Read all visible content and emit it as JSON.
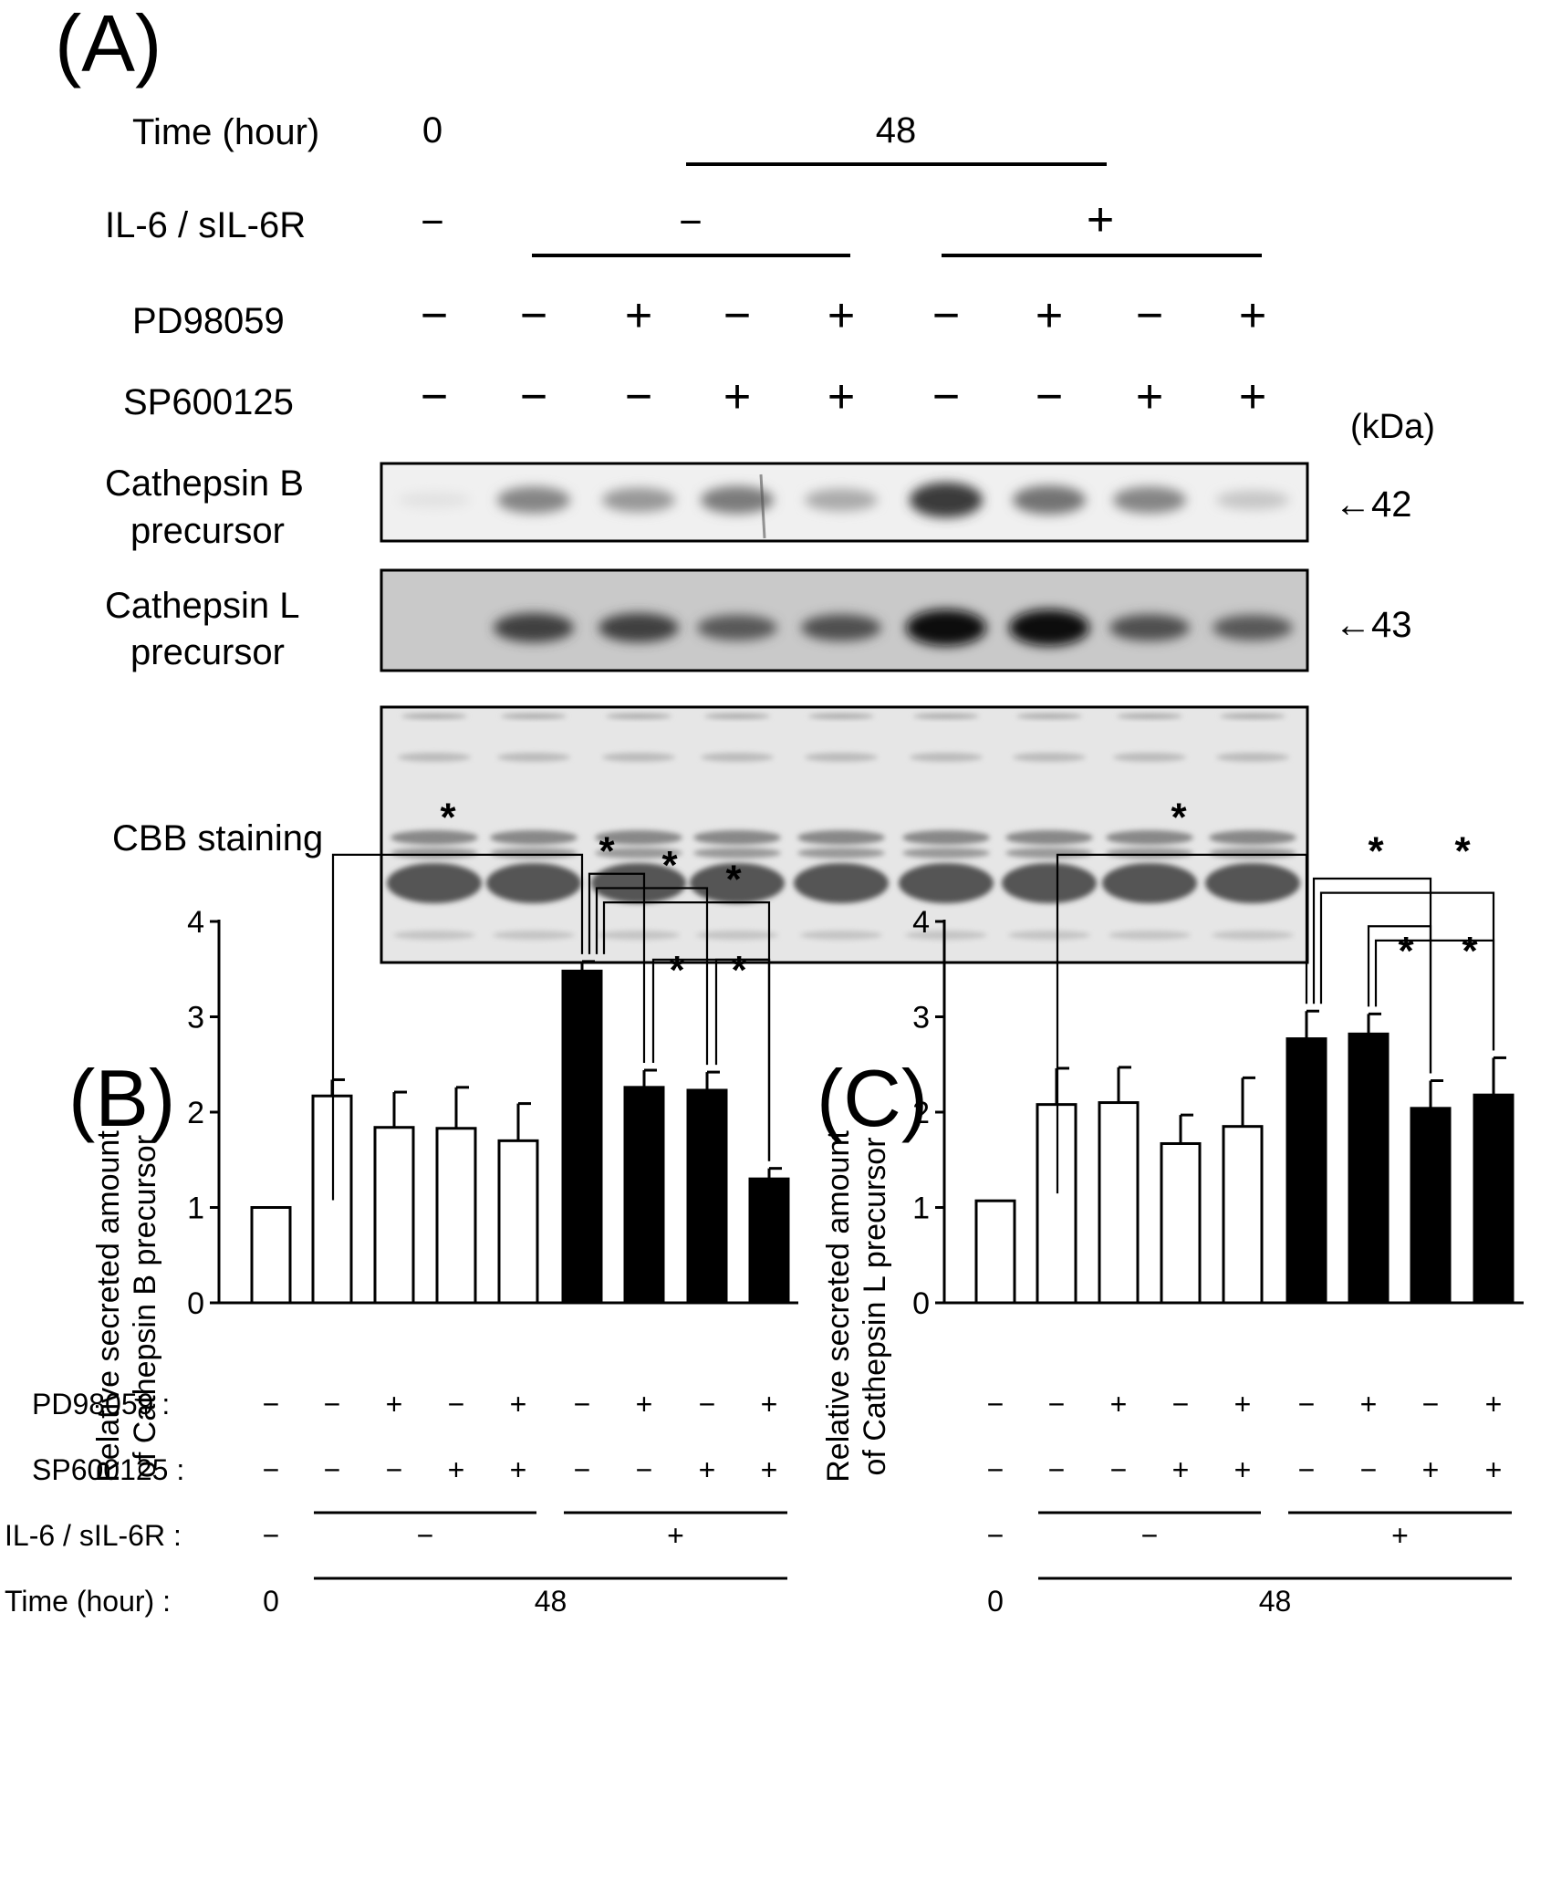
{
  "panel_a": {
    "label": "(A)",
    "row_labels": {
      "time": "Time (hour)",
      "il6": "IL-6 / sIL-6R",
      "pd": "PD98059",
      "sp": "SP600125",
      "catb_1": "Cathepsin B",
      "catb_2": "precursor",
      "catl_1": "Cathepsin L",
      "catl_2": "precursor",
      "cbb": "CBB staining"
    },
    "time_values": [
      "0",
      "48"
    ],
    "il6_values": [
      "−",
      "−",
      "+"
    ],
    "pd_values": [
      "−",
      "−",
      "+",
      "−",
      "+",
      "−",
      "+",
      "−",
      "+"
    ],
    "sp_values": [
      "−",
      "−",
      "−",
      "+",
      "+",
      "−",
      "−",
      "+",
      "+"
    ],
    "kda_label": "(kDa)",
    "marker_b": "←42",
    "marker_l": "←43",
    "band_intensity_catb": [
      0.05,
      0.55,
      0.45,
      0.6,
      0.35,
      0.95,
      0.65,
      0.55,
      0.2
    ],
    "band_intensity_catl": [
      0.0,
      0.7,
      0.7,
      0.55,
      0.6,
      1.0,
      1.0,
      0.6,
      0.55
    ]
  },
  "chart_data": [
    {
      "type": "bar",
      "panel": "(B)",
      "ylabel_line1": "Relative secreted amount",
      "ylabel_line2": "of Cathepsin B precursor",
      "ylim": [
        0,
        4
      ],
      "yticks": [
        "0",
        "1",
        "2",
        "3",
        "4"
      ],
      "values": [
        1.0,
        2.17,
        1.84,
        1.83,
        1.7,
        3.48,
        2.26,
        2.23,
        1.3
      ],
      "errors": [
        0.0,
        0.17,
        0.37,
        0.43,
        0.39,
        0.1,
        0.18,
        0.19,
        0.11
      ],
      "fill": [
        "white",
        "white",
        "white",
        "white",
        "white",
        "black",
        "black",
        "black",
        "black"
      ],
      "significance": "*",
      "stars": [
        "*",
        "*",
        "*",
        "*",
        "*",
        "*"
      ],
      "rows": {
        "pd_label": "PD98059 :",
        "pd_values": [
          "−",
          "−",
          "+",
          "−",
          "+",
          "−",
          "+",
          "−",
          "+"
        ],
        "sp_label": "SP600125 :",
        "sp_values": [
          "−",
          "−",
          "−",
          "+",
          "+",
          "−",
          "−",
          "+",
          "+"
        ],
        "il6_label": "IL-6 / sIL-6R :",
        "il6_values": [
          "−",
          "−",
          "+"
        ],
        "time_label": "Time (hour) :",
        "time_values": [
          "0",
          "48"
        ]
      }
    },
    {
      "type": "bar",
      "panel": "(C)",
      "ylabel_line1": "Relative secreted amount",
      "ylabel_line2": "of Cathepsin L precursor",
      "ylim": [
        0,
        4
      ],
      "yticks": [
        "0",
        "1",
        "2",
        "3",
        "4"
      ],
      "values": [
        1.07,
        2.08,
        2.1,
        1.67,
        1.85,
        2.77,
        2.82,
        2.04,
        2.18
      ],
      "errors": [
        0.0,
        0.38,
        0.37,
        0.3,
        0.51,
        0.29,
        0.21,
        0.29,
        0.39
      ],
      "fill": [
        "white",
        "white",
        "white",
        "white",
        "white",
        "black",
        "black",
        "black",
        "black"
      ],
      "significance": "*",
      "stars": [
        "*",
        "*",
        "*",
        "*",
        "*"
      ],
      "rows": {
        "pd_values": [
          "−",
          "−",
          "+",
          "−",
          "+",
          "−",
          "+",
          "−",
          "+"
        ],
        "sp_values": [
          "−",
          "−",
          "−",
          "+",
          "+",
          "−",
          "−",
          "+",
          "+"
        ],
        "il6_values": [
          "−",
          "−",
          "+"
        ],
        "time_values": [
          "0",
          "48"
        ]
      }
    }
  ]
}
